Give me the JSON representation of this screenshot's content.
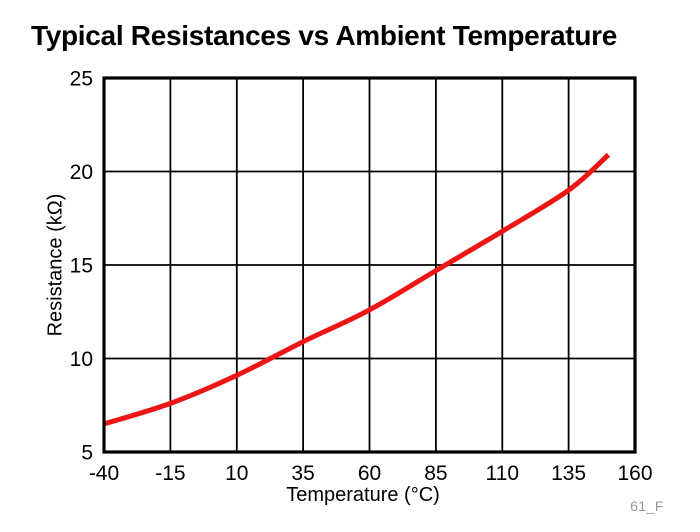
{
  "footnote": "61_F",
  "colors": {
    "curve": "#ed1515",
    "axis": "#000000",
    "grid": "#000000",
    "footnote": "#9a9a9a",
    "background": "#ffffff"
  },
  "chart_data": {
    "type": "line",
    "title": "Typical Resistances vs Ambient Temperature",
    "xlabel": "Temperature (°C)",
    "ylabel": "Resistance (kΩ)",
    "xlim": [
      -40,
      160
    ],
    "ylim": [
      5,
      25
    ],
    "x_ticks": [
      -40,
      -15,
      10,
      35,
      60,
      85,
      110,
      135,
      160
    ],
    "y_ticks": [
      5,
      10,
      15,
      20,
      25
    ],
    "grid": true,
    "legend_position": "none",
    "series": [
      {
        "name": "Typical Resistance",
        "color": "#ed1515",
        "x": [
          -40,
          -15,
          10,
          35,
          60,
          85,
          110,
          135,
          150
        ],
        "y": [
          6.5,
          7.6,
          9.1,
          10.9,
          12.6,
          14.7,
          16.8,
          19.0,
          20.9
        ]
      }
    ]
  }
}
